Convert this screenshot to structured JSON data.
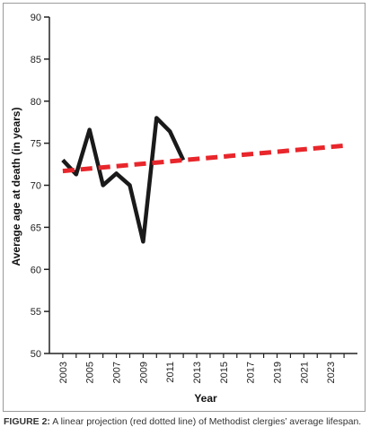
{
  "chart_data": {
    "type": "line",
    "xlabel": "Year",
    "ylabel": "Average age at death (in years)",
    "ylim": [
      50,
      90
    ],
    "xlim": [
      2002,
      2025
    ],
    "yticks": [
      50,
      55,
      60,
      65,
      70,
      75,
      80,
      85,
      90
    ],
    "xticks": [
      2003,
      2005,
      2007,
      2009,
      2011,
      2013,
      2015,
      2017,
      2019,
      2021,
      2023
    ],
    "grid": false,
    "series": [
      {
        "kind": "observed",
        "color": "#1a1a1a",
        "x": [
          2003,
          2004,
          2005,
          2006,
          2007,
          2008,
          2009,
          2010,
          2011,
          2012
        ],
        "y": [
          73.0,
          71.3,
          76.6,
          70.0,
          71.4,
          70.0,
          63.3,
          78.0,
          76.4,
          73.0
        ]
      },
      {
        "kind": "linear projection",
        "color": "#e8262b",
        "style": "dashed",
        "x": [
          2003,
          2024
        ],
        "y": [
          71.7,
          74.7
        ]
      }
    ]
  },
  "caption": {
    "label": "FIGURE 2:",
    "text": " A linear projection (red dotted line) of Methodist clergies’ average lifespan."
  }
}
